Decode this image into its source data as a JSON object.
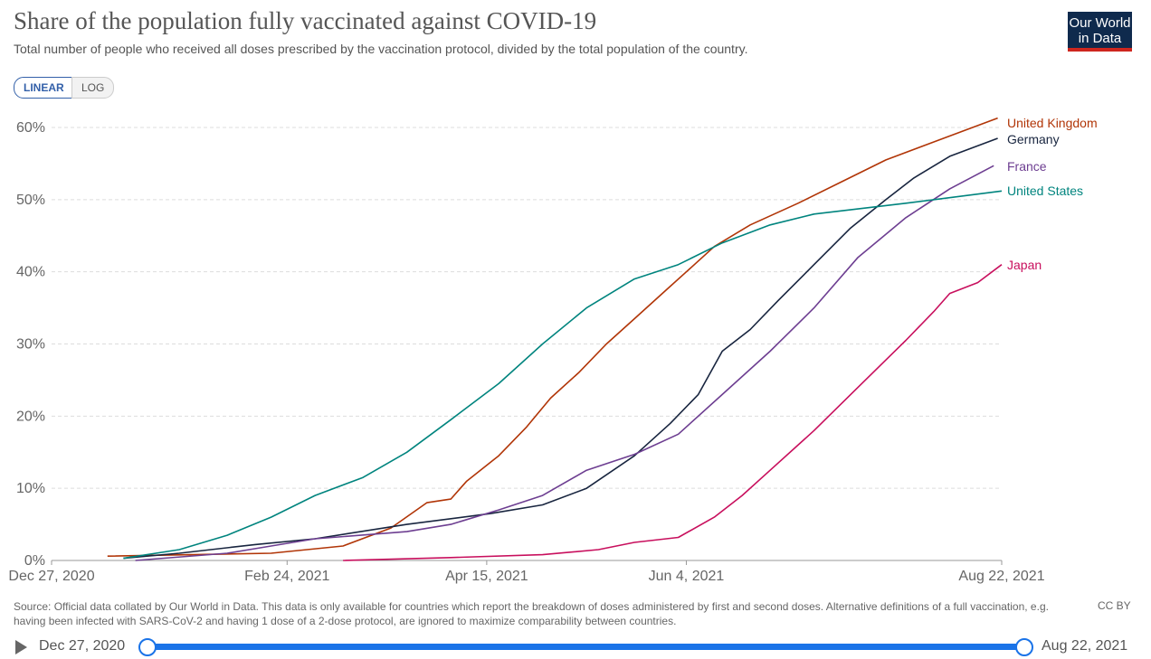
{
  "header": {
    "title": "Share of the population fully vaccinated against COVID-19",
    "subtitle": "Total number of people who received all doses prescribed by the vaccination protocol, divided by the total population of the country.",
    "logo": "Our World in Data"
  },
  "controls": {
    "linear": "LINEAR",
    "log": "LOG",
    "active": "LINEAR"
  },
  "footer": {
    "source": "Source: Official data collated by Our World in Data. This data is only available for countries which report the breakdown of doses administered by first and second doses. Alternative definitions of a full vaccination, e.g. having been infected with SARS-CoV-2 and having 1 dose of a 2-dose protocol, are ignored to maximize comparability between countries.",
    "license": "CC BY"
  },
  "timeline": {
    "start": "Dec 27, 2020",
    "end": "Aug 22, 2021",
    "icon": "play-icon"
  },
  "chart_data": {
    "type": "line",
    "title": "Share of the population fully vaccinated against COVID-19",
    "xlim": [
      "2020-12-27",
      "2021-08-22"
    ],
    "ylim": [
      0,
      60
    ],
    "grid": "horizontal dashed",
    "xticks": [
      {
        "date": "2020-12-27",
        "label": "Dec 27, 2020"
      },
      {
        "date": "2021-02-24",
        "label": "Feb 24, 2021"
      },
      {
        "date": "2021-04-15",
        "label": "Apr 15, 2021"
      },
      {
        "date": "2021-06-04",
        "label": "Jun 4, 2021"
      },
      {
        "date": "2021-08-22",
        "label": "Aug 22, 2021"
      }
    ],
    "yticks": [
      {
        "v": 0,
        "label": "0%"
      },
      {
        "v": 10,
        "label": "10%"
      },
      {
        "v": 20,
        "label": "20%"
      },
      {
        "v": 30,
        "label": "30%"
      },
      {
        "v": 40,
        "label": "40%"
      },
      {
        "v": 50,
        "label": "50%"
      },
      {
        "v": 60,
        "label": "60%"
      }
    ],
    "legend": "end-of-line labels",
    "series": [
      {
        "name": "United Kingdom",
        "color": "#b13507",
        "points": [
          [
            "2021-01-10",
            0.6
          ],
          [
            "2021-02-20",
            1
          ],
          [
            "2021-03-10",
            2
          ],
          [
            "2021-03-22",
            4.5
          ],
          [
            "2021-03-31",
            8
          ],
          [
            "2021-04-06",
            8.5
          ],
          [
            "2021-04-10",
            11
          ],
          [
            "2021-04-18",
            14.5
          ],
          [
            "2021-04-25",
            18.5
          ],
          [
            "2021-05-01",
            22.5
          ],
          [
            "2021-05-08",
            26
          ],
          [
            "2021-05-15",
            30
          ],
          [
            "2021-05-22",
            33.5
          ],
          [
            "2021-05-30",
            37.5
          ],
          [
            "2021-06-04",
            40
          ],
          [
            "2021-06-11",
            43.5
          ],
          [
            "2021-06-20",
            46.5
          ],
          [
            "2021-07-02",
            49.5
          ],
          [
            "2021-07-13",
            52.5
          ],
          [
            "2021-07-24",
            55.5
          ],
          [
            "2021-08-05",
            58
          ],
          [
            "2021-08-21",
            61.3
          ]
        ]
      },
      {
        "name": "Germany",
        "color": "#18253f",
        "points": [
          [
            "2021-01-14",
            0.3
          ],
          [
            "2021-01-28",
            1
          ],
          [
            "2021-02-16",
            2.2
          ],
          [
            "2021-03-03",
            3
          ],
          [
            "2021-03-26",
            5
          ],
          [
            "2021-04-16",
            6.5
          ],
          [
            "2021-04-29",
            7.7
          ],
          [
            "2021-05-10",
            10
          ],
          [
            "2021-05-22",
            14.5
          ],
          [
            "2021-05-31",
            19
          ],
          [
            "2021-06-07",
            23
          ],
          [
            "2021-06-13",
            29
          ],
          [
            "2021-06-20",
            32
          ],
          [
            "2021-06-27",
            36
          ],
          [
            "2021-07-06",
            41
          ],
          [
            "2021-07-15",
            46
          ],
          [
            "2021-07-24",
            50
          ],
          [
            "2021-07-31",
            53
          ],
          [
            "2021-08-09",
            56
          ],
          [
            "2021-08-21",
            58.5
          ]
        ]
      },
      {
        "name": "France",
        "color": "#6d3e91",
        "points": [
          [
            "2021-01-17",
            0
          ],
          [
            "2021-02-09",
            1
          ],
          [
            "2021-02-20",
            2
          ],
          [
            "2021-03-03",
            3
          ],
          [
            "2021-03-26",
            4
          ],
          [
            "2021-04-06",
            5
          ],
          [
            "2021-04-18",
            7
          ],
          [
            "2021-04-29",
            9
          ],
          [
            "2021-05-10",
            12.5
          ],
          [
            "2021-05-22",
            14.7
          ],
          [
            "2021-06-02",
            17.5
          ],
          [
            "2021-06-13",
            23
          ],
          [
            "2021-06-25",
            29
          ],
          [
            "2021-07-06",
            35
          ],
          [
            "2021-07-17",
            42
          ],
          [
            "2021-07-29",
            47.5
          ],
          [
            "2021-08-09",
            51.5
          ],
          [
            "2021-08-20",
            54.7
          ]
        ]
      },
      {
        "name": "United States",
        "color": "#00847e",
        "points": [
          [
            "2021-01-14",
            0.3
          ],
          [
            "2021-01-28",
            1.5
          ],
          [
            "2021-02-09",
            3.5
          ],
          [
            "2021-02-20",
            6
          ],
          [
            "2021-03-03",
            9
          ],
          [
            "2021-03-15",
            11.5
          ],
          [
            "2021-03-26",
            15
          ],
          [
            "2021-04-06",
            19.5
          ],
          [
            "2021-04-18",
            24.5
          ],
          [
            "2021-04-29",
            30
          ],
          [
            "2021-05-10",
            35
          ],
          [
            "2021-05-22",
            39
          ],
          [
            "2021-06-02",
            41
          ],
          [
            "2021-06-13",
            44
          ],
          [
            "2021-06-25",
            46.5
          ],
          [
            "2021-07-06",
            48
          ],
          [
            "2021-07-29",
            49.5
          ],
          [
            "2021-08-22",
            51.2
          ]
        ]
      },
      {
        "name": "Japan",
        "color": "#c80f5d",
        "points": [
          [
            "2021-03-10",
            0
          ],
          [
            "2021-04-06",
            0.4
          ],
          [
            "2021-04-29",
            0.8
          ],
          [
            "2021-05-13",
            1.5
          ],
          [
            "2021-05-22",
            2.5
          ],
          [
            "2021-06-02",
            3.2
          ],
          [
            "2021-06-11",
            6
          ],
          [
            "2021-06-18",
            9
          ],
          [
            "2021-06-25",
            12.5
          ],
          [
            "2021-07-06",
            18
          ],
          [
            "2021-07-17",
            24
          ],
          [
            "2021-07-29",
            30.5
          ],
          [
            "2021-08-05",
            34.5
          ],
          [
            "2021-08-09",
            37
          ],
          [
            "2021-08-16",
            38.5
          ],
          [
            "2021-08-22",
            41
          ]
        ]
      }
    ]
  }
}
